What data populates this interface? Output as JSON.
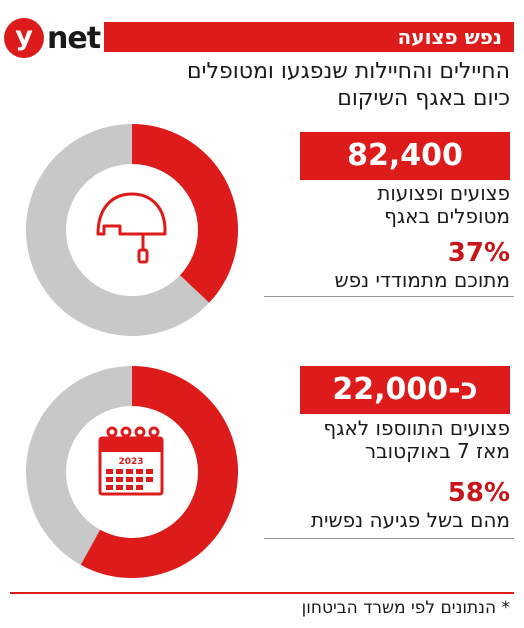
{
  "brand": {
    "logo_letter": "y",
    "logo_word": "net",
    "accent": "#de1b1b",
    "ring_grey": "#c8c8c8"
  },
  "header": {
    "section": "נפש פצועה",
    "title_line1": "החיילים והחיילות שנפגעו ומטופלים",
    "title_line2": "כיום באגף השיקום"
  },
  "stats": [
    {
      "number": "82,400",
      "desc_line1": "פצועים ופצועות",
      "desc_line2": "מטופלים באגף",
      "percent_label": "37%",
      "percent": 37,
      "percent_desc": "מתוכם מתמודדי נפש",
      "icon": "helmet-icon"
    },
    {
      "number": "כ-22,000",
      "desc_line1": "פצועים התווספו לאגף",
      "desc_line2": "מאז 7 באוקטובר",
      "percent_label": "58%",
      "percent": 58,
      "percent_desc": "מהם בשל פגיעה נפשית",
      "icon": "calendar-icon",
      "icon_text": "2023"
    }
  ],
  "footnote": "* הנתונים לפי משרד הביטחון"
}
